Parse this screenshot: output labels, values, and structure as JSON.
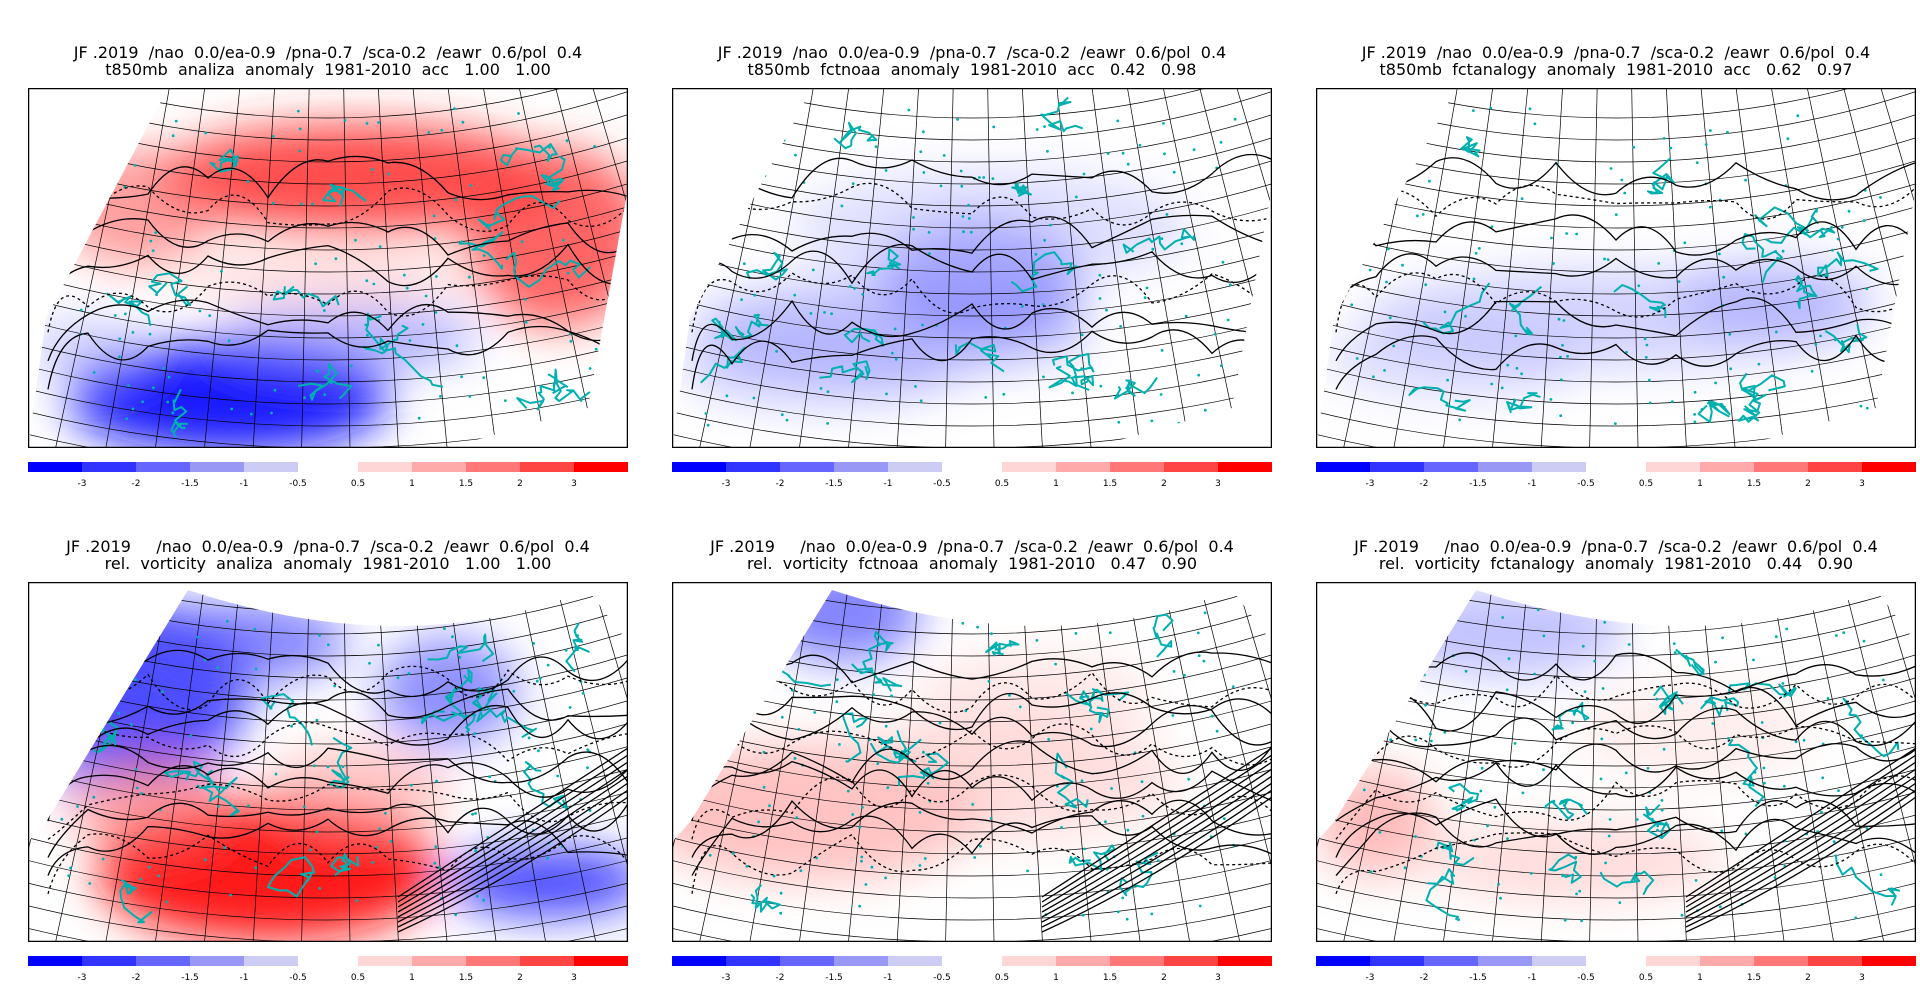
{
  "panels": [
    {
      "line1": "JF .2019  /nao  0.0/ea-0.9  /pna-0.7  /sca-0.2  /eawr  0.6/pol  0.4",
      "line2": "t850mb  analiza  anomaly  1981-2010  acc   1.00   1.00",
      "pattern": "t850-analiza"
    },
    {
      "line1": "JF .2019  /nao  0.0/ea-0.9  /pna-0.7  /sca-0.2  /eawr  0.6/pol  0.4",
      "line2": "t850mb  fctnoaa  anomaly  1981-2010  acc   0.42   0.98",
      "pattern": "t850-fctnoaa"
    },
    {
      "line1": "JF .2019  /nao  0.0/ea-0.9  /pna-0.7  /sca-0.2  /eawr  0.6/pol  0.4",
      "line2": "t850mb  fctanalogy  anomaly  1981-2010  acc   0.62   0.97",
      "pattern": "t850-fctanalogy"
    },
    {
      "line1": "JF .2019     /nao  0.0/ea-0.9  /pna-0.7  /sca-0.2  /eawr  0.6/pol  0.4",
      "line2": "rel.  vorticity  analiza  anomaly  1981-2010   1.00   1.00",
      "pattern": "vort-analiza"
    },
    {
      "line1": "JF .2019     /nao  0.0/ea-0.9  /pna-0.7  /sca-0.2  /eawr  0.6/pol  0.4",
      "line2": "rel.  vorticity  fctnoaa  anomaly  1981-2010   0.47   0.90",
      "pattern": "vort-fctnoaa"
    },
    {
      "line1": "JF .2019     /nao  0.0/ea-0.9  /pna-0.7  /sca-0.2  /eawr  0.6/pol  0.4",
      "line2": "rel.  vorticity  fctanalogy  anomaly  1981-2010   0.44   0.90",
      "pattern": "vort-fctanalogy"
    }
  ],
  "colorbar": {
    "negative": {
      "colors": [
        "#0000ff",
        "#3333ff",
        "#6666ff",
        "#9999f5",
        "#ccccf5"
      ],
      "labels": [
        "-3",
        "-2",
        "-1.5",
        "-1",
        "-0.5"
      ]
    },
    "positive": {
      "colors": [
        "#ffd6d6",
        "#ffaaaa",
        "#ff7777",
        "#ff4444",
        "#ff0000"
      ],
      "labels": [
        "0.5",
        "1",
        "1.5",
        "2",
        "3"
      ]
    }
  },
  "colors": {
    "coastline": "#00b0b0",
    "grid": "#000000",
    "blue_anomaly": "#2020ff",
    "red_anomaly": "#ff1a1a"
  }
}
